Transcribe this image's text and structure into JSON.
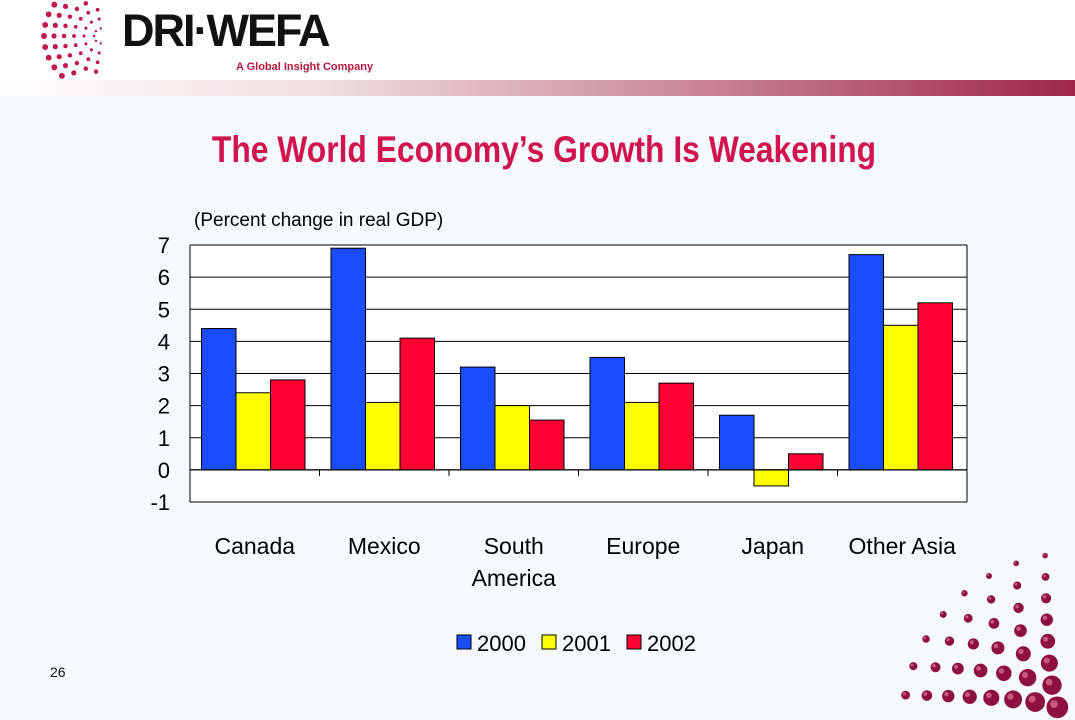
{
  "logo": {
    "wordmark": "DRI·WEFA",
    "tagline": "A Global Insight Company"
  },
  "slide": {
    "title": "The World Economy’s Growth Is Weakening",
    "page_number": "26"
  },
  "colors": {
    "title": "#d2144e",
    "series_2000": "#1a4cff",
    "series_2001": "#ffff00",
    "series_2002": "#ff0033"
  },
  "chart_data": {
    "type": "bar",
    "subtitle": "(Percent change in real GDP)",
    "categories": [
      "Canada",
      "Mexico",
      "South America",
      "Europe",
      "Japan",
      "Other Asia"
    ],
    "series": [
      {
        "name": "2000",
        "values": [
          4.4,
          6.9,
          3.2,
          3.5,
          1.7,
          6.7
        ]
      },
      {
        "name": "2001",
        "values": [
          2.4,
          2.1,
          2.0,
          2.1,
          -0.5,
          4.5
        ]
      },
      {
        "name": "2002",
        "values": [
          2.8,
          4.1,
          1.55,
          2.7,
          0.5,
          5.2
        ]
      }
    ],
    "ylim": [
      -1,
      7
    ],
    "yticks": [
      "-1",
      "0",
      "1",
      "2",
      "3",
      "4",
      "5",
      "6",
      "7"
    ],
    "grid": true,
    "legend_position": "bottom"
  }
}
